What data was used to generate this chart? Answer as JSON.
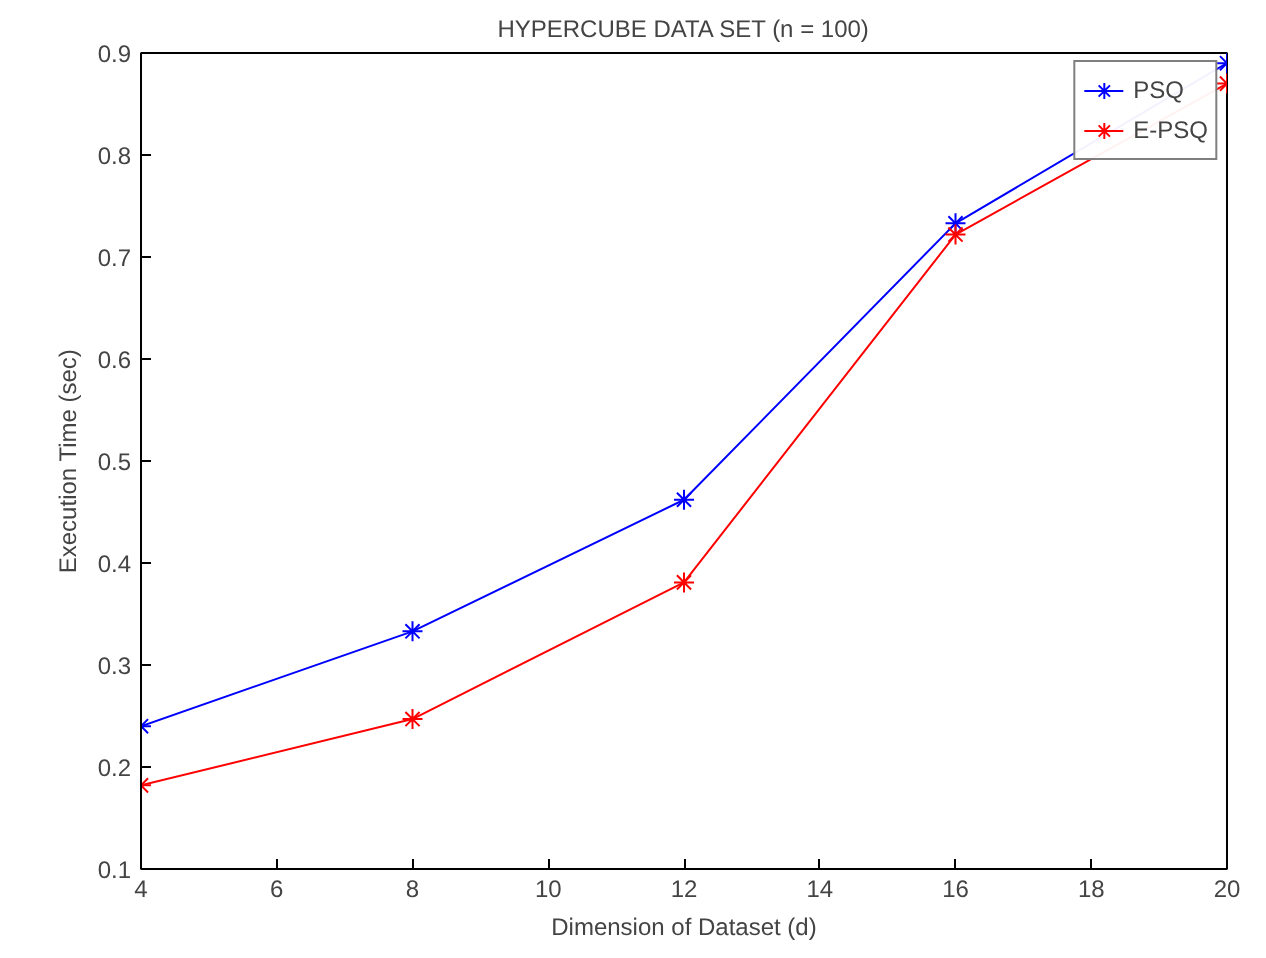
{
  "chart_data": {
    "type": "line",
    "title": "HYPERCUBE DATA SET (n = 100)",
    "xlabel": "Dimension of Dataset (d)",
    "ylabel": "Execution Time (sec)",
    "x": [
      4,
      8,
      12,
      16,
      20
    ],
    "series": [
      {
        "name": "PSQ",
        "color": "#0000ff",
        "values": [
          0.24,
          0.333,
          0.462,
          0.733,
          0.89
        ]
      },
      {
        "name": "E-PSQ",
        "color": "#ff0000",
        "values": [
          0.182,
          0.247,
          0.381,
          0.722,
          0.87
        ]
      }
    ],
    "xlim": [
      4,
      20
    ],
    "xticks": [
      4,
      6,
      8,
      10,
      12,
      14,
      16,
      18,
      20
    ],
    "ylim": [
      0.1,
      0.9
    ],
    "yticks": [
      0.1,
      0.2,
      0.3,
      0.4,
      0.5,
      0.6,
      0.7,
      0.8,
      0.9
    ],
    "grid": false,
    "legend": "top right",
    "marker": "cross",
    "line_style": "solid"
  }
}
